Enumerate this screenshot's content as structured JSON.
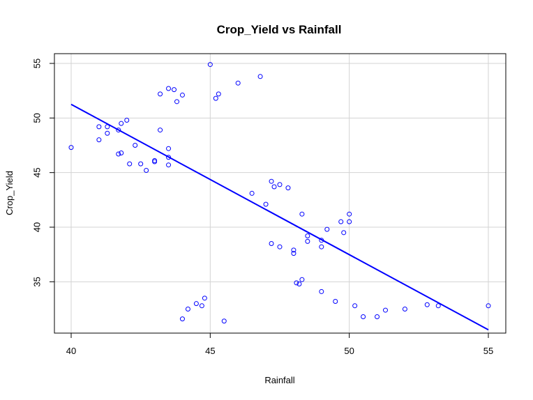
{
  "chart_data": {
    "type": "scatter",
    "title": "Crop_Yield vs Rainfall",
    "xlabel": "Rainfall",
    "ylabel": "Crop_Yield",
    "xlim": [
      40,
      55
    ],
    "ylim": [
      31,
      55
    ],
    "x_ticks": [
      "40",
      "45",
      "50",
      "55"
    ],
    "y_ticks": [
      "35",
      "40",
      "45",
      "50",
      "55"
    ],
    "grid": true,
    "colors": {
      "points": "#0000ff",
      "line": "#0000ff",
      "grid": "#d3d3d3",
      "axes": "#000000"
    },
    "points": [
      {
        "x": 40.0,
        "y": 47.3
      },
      {
        "x": 41.0,
        "y": 49.2
      },
      {
        "x": 41.0,
        "y": 48.0
      },
      {
        "x": 41.3,
        "y": 49.2
      },
      {
        "x": 41.3,
        "y": 48.6
      },
      {
        "x": 41.7,
        "y": 48.9
      },
      {
        "x": 41.7,
        "y": 46.7
      },
      {
        "x": 41.8,
        "y": 49.5
      },
      {
        "x": 41.8,
        "y": 46.8
      },
      {
        "x": 42.0,
        "y": 49.8
      },
      {
        "x": 42.1,
        "y": 45.8
      },
      {
        "x": 42.3,
        "y": 47.5
      },
      {
        "x": 42.5,
        "y": 45.8
      },
      {
        "x": 42.7,
        "y": 45.2
      },
      {
        "x": 43.0,
        "y": 46.1
      },
      {
        "x": 43.0,
        "y": 46.0
      },
      {
        "x": 43.2,
        "y": 52.2
      },
      {
        "x": 43.2,
        "y": 48.9
      },
      {
        "x": 43.5,
        "y": 52.7
      },
      {
        "x": 43.5,
        "y": 47.2
      },
      {
        "x": 43.5,
        "y": 46.4
      },
      {
        "x": 43.5,
        "y": 45.7
      },
      {
        "x": 43.7,
        "y": 52.6
      },
      {
        "x": 43.8,
        "y": 51.5
      },
      {
        "x": 44.0,
        "y": 52.1
      },
      {
        "x": 44.0,
        "y": 31.6
      },
      {
        "x": 44.2,
        "y": 32.5
      },
      {
        "x": 44.5,
        "y": 33.0
      },
      {
        "x": 44.7,
        "y": 32.8
      },
      {
        "x": 44.8,
        "y": 33.5
      },
      {
        "x": 45.0,
        "y": 54.9
      },
      {
        "x": 45.2,
        "y": 51.8
      },
      {
        "x": 45.3,
        "y": 52.2
      },
      {
        "x": 45.5,
        "y": 31.4
      },
      {
        "x": 46.0,
        "y": 53.2
      },
      {
        "x": 46.5,
        "y": 43.1
      },
      {
        "x": 46.8,
        "y": 53.8
      },
      {
        "x": 47.0,
        "y": 42.1
      },
      {
        "x": 47.2,
        "y": 44.2
      },
      {
        "x": 47.3,
        "y": 43.7
      },
      {
        "x": 47.5,
        "y": 43.9
      },
      {
        "x": 47.2,
        "y": 38.5
      },
      {
        "x": 47.5,
        "y": 38.2
      },
      {
        "x": 47.8,
        "y": 43.6
      },
      {
        "x": 48.0,
        "y": 37.9
      },
      {
        "x": 48.0,
        "y": 37.6
      },
      {
        "x": 48.1,
        "y": 34.9
      },
      {
        "x": 48.2,
        "y": 34.8
      },
      {
        "x": 48.3,
        "y": 35.2
      },
      {
        "x": 48.3,
        "y": 41.2
      },
      {
        "x": 48.5,
        "y": 39.2
      },
      {
        "x": 48.5,
        "y": 38.7
      },
      {
        "x": 49.0,
        "y": 38.8
      },
      {
        "x": 49.0,
        "y": 38.2
      },
      {
        "x": 49.0,
        "y": 34.1
      },
      {
        "x": 49.2,
        "y": 39.8
      },
      {
        "x": 49.5,
        "y": 33.2
      },
      {
        "x": 49.7,
        "y": 40.5
      },
      {
        "x": 49.8,
        "y": 39.5
      },
      {
        "x": 50.0,
        "y": 41.2
      },
      {
        "x": 50.0,
        "y": 40.5
      },
      {
        "x": 50.2,
        "y": 32.8
      },
      {
        "x": 50.5,
        "y": 31.8
      },
      {
        "x": 51.0,
        "y": 31.8
      },
      {
        "x": 51.3,
        "y": 32.4
      },
      {
        "x": 52.0,
        "y": 32.5
      },
      {
        "x": 52.8,
        "y": 32.9
      },
      {
        "x": 53.2,
        "y": 32.8
      },
      {
        "x": 55.0,
        "y": 32.8
      }
    ],
    "regression_line": {
      "x": [
        40,
        55
      ],
      "y": [
        51.25,
        30.6
      ]
    }
  }
}
